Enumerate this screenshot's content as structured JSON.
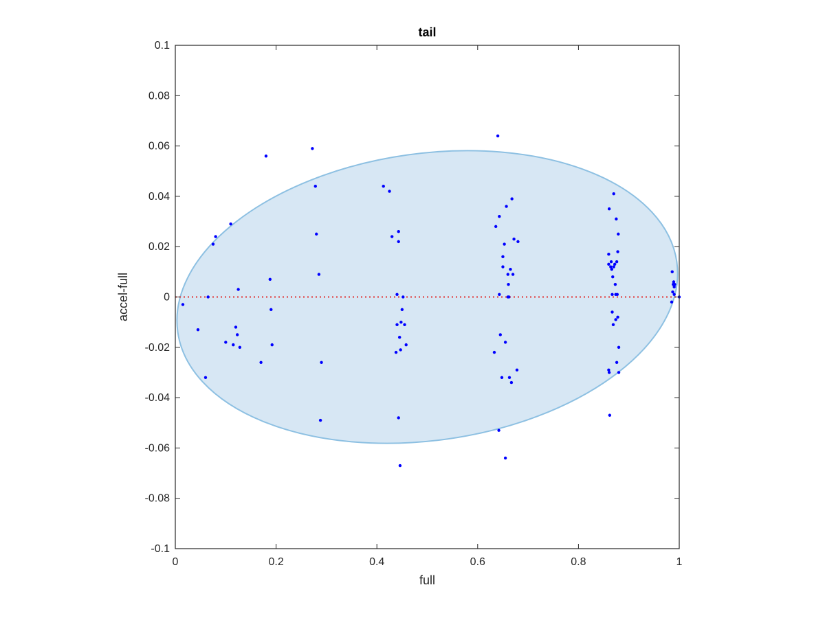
{
  "chart_data": {
    "type": "scatter",
    "title": "tail",
    "xlabel": "full",
    "ylabel": "accel-full",
    "xlim": [
      0,
      1
    ],
    "ylim": [
      -0.1,
      0.1
    ],
    "xticks": [
      0,
      0.2,
      0.4,
      0.6,
      0.8,
      1
    ],
    "xtick_labels": [
      "0",
      "0.2",
      "0.4",
      "0.6",
      "0.8",
      "1"
    ],
    "yticks": [
      -0.1,
      -0.08,
      -0.06,
      -0.04,
      -0.02,
      0,
      0.02,
      0.04,
      0.06,
      0.08,
      0.1
    ],
    "ytick_labels": [
      "-0.1",
      "-0.08",
      "-0.06",
      "-0.04",
      "-0.02",
      "0",
      "0.02",
      "0.04",
      "0.06",
      "0.08",
      "0.1"
    ],
    "grid": false,
    "reference_line": {
      "y": 0,
      "color": "#e03030",
      "style": "dotted"
    },
    "ellipse": {
      "cx": 0.5,
      "cy": 0,
      "rx": 0.5,
      "ry": 0.057,
      "rotation_deg": -8,
      "fill": "#d7e7f4",
      "stroke": "#8dc0e2"
    },
    "point_color": "#0000ff",
    "points": [
      [
        0.015,
        -0.003
      ],
      [
        0.045,
        -0.013
      ],
      [
        0.06,
        -0.032
      ],
      [
        0.065,
        0.0
      ],
      [
        0.075,
        0.021
      ],
      [
        0.08,
        0.024
      ],
      [
        0.1,
        -0.018
      ],
      [
        0.11,
        0.029
      ],
      [
        0.115,
        -0.019
      ],
      [
        0.12,
        -0.012
      ],
      [
        0.123,
        -0.015
      ],
      [
        0.125,
        0.003
      ],
      [
        0.128,
        -0.02
      ],
      [
        0.17,
        -0.026
      ],
      [
        0.18,
        0.056
      ],
      [
        0.188,
        0.007
      ],
      [
        0.19,
        -0.005
      ],
      [
        0.192,
        -0.019
      ],
      [
        0.272,
        0.059
      ],
      [
        0.278,
        0.044
      ],
      [
        0.28,
        0.025
      ],
      [
        0.285,
        0.009
      ],
      [
        0.288,
        -0.049
      ],
      [
        0.29,
        -0.026
      ],
      [
        0.413,
        0.044
      ],
      [
        0.425,
        0.042
      ],
      [
        0.43,
        0.024
      ],
      [
        0.438,
        -0.022
      ],
      [
        0.44,
        0.001
      ],
      [
        0.44,
        -0.011
      ],
      [
        0.443,
        0.026
      ],
      [
        0.443,
        0.022
      ],
      [
        0.443,
        -0.048
      ],
      [
        0.445,
        -0.016
      ],
      [
        0.446,
        -0.067
      ],
      [
        0.447,
        -0.021
      ],
      [
        0.448,
        -0.01
      ],
      [
        0.45,
        -0.005
      ],
      [
        0.452,
        0.0
      ],
      [
        0.455,
        -0.011
      ],
      [
        0.458,
        -0.019
      ],
      [
        0.633,
        -0.022
      ],
      [
        0.636,
        0.028
      ],
      [
        0.64,
        0.064
      ],
      [
        0.642,
        -0.053
      ],
      [
        0.643,
        0.001
      ],
      [
        0.643,
        0.032
      ],
      [
        0.645,
        -0.015
      ],
      [
        0.648,
        -0.032
      ],
      [
        0.65,
        0.012
      ],
      [
        0.65,
        0.016
      ],
      [
        0.653,
        0.021
      ],
      [
        0.655,
        -0.018
      ],
      [
        0.655,
        -0.064
      ],
      [
        0.657,
        0.036
      ],
      [
        0.66,
        0.0
      ],
      [
        0.66,
        0.009
      ],
      [
        0.661,
        0.005
      ],
      [
        0.662,
        0.0
      ],
      [
        0.663,
        -0.032
      ],
      [
        0.665,
        0.011
      ],
      [
        0.667,
        -0.034
      ],
      [
        0.668,
        0.039
      ],
      [
        0.67,
        0.009
      ],
      [
        0.672,
        0.023
      ],
      [
        0.678,
        -0.029
      ],
      [
        0.68,
        0.022
      ],
      [
        0.86,
        0.017
      ],
      [
        0.86,
        0.013
      ],
      [
        0.86,
        -0.029
      ],
      [
        0.861,
        -0.03
      ],
      [
        0.861,
        0.035
      ],
      [
        0.862,
        -0.047
      ],
      [
        0.864,
        0.012
      ],
      [
        0.865,
        0.014
      ],
      [
        0.866,
        0.011
      ],
      [
        0.867,
        0.001
      ],
      [
        0.867,
        -0.006
      ],
      [
        0.868,
        0.008
      ],
      [
        0.869,
        -0.011
      ],
      [
        0.87,
        0.012
      ],
      [
        0.87,
        0.041
      ],
      [
        0.872,
        0.013
      ],
      [
        0.873,
        0.005
      ],
      [
        0.874,
        0.001
      ],
      [
        0.874,
        -0.009
      ],
      [
        0.875,
        0.031
      ],
      [
        0.876,
        0.014
      ],
      [
        0.876,
        -0.026
      ],
      [
        0.877,
        0.001
      ],
      [
        0.878,
        -0.008
      ],
      [
        0.878,
        0.018
      ],
      [
        0.879,
        0.025
      ],
      [
        0.88,
        -0.03
      ],
      [
        0.88,
        -0.02
      ],
      [
        0.985,
        -0.002
      ],
      [
        0.986,
        0.01
      ],
      [
        0.987,
        0.002
      ],
      [
        0.988,
        0.005
      ],
      [
        0.989,
        0.006
      ],
      [
        0.99,
        0.004
      ],
      [
        0.99,
        0.001
      ],
      [
        0.991,
        0.005
      ],
      [
        1.0,
        0.0
      ]
    ]
  }
}
